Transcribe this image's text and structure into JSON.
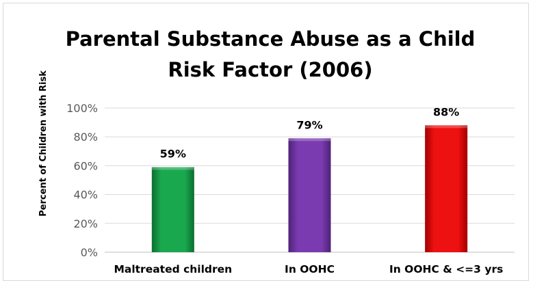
{
  "chart_data": {
    "type": "bar",
    "title_lines": [
      "Parental Substance Abuse as a Child",
      "Risk Factor (2006)"
    ],
    "ylabel": "Percent of Children with Risk",
    "xlabel": "",
    "categories": [
      "Maltreated children",
      "In OOHC",
      "In OOHC & <=3 yrs"
    ],
    "values": [
      59,
      79,
      88
    ],
    "data_labels": [
      "59%",
      "79%",
      "88%"
    ],
    "ylim": [
      0,
      100
    ],
    "yticks": [
      0,
      20,
      40,
      60,
      80,
      100
    ],
    "ytick_labels": [
      "0%",
      "20%",
      "40%",
      "60%",
      "80%",
      "100%"
    ],
    "grid": true,
    "legend": "none",
    "bar_colors": [
      "#1aa84f",
      "#7a3bb0",
      "#ee1111"
    ],
    "bar_edge_colors": [
      "#0b6e2f",
      "#4e2277",
      "#a30000"
    ],
    "grid_color": "#d9d9d9",
    "axis_color": "#bfbfbf"
  }
}
